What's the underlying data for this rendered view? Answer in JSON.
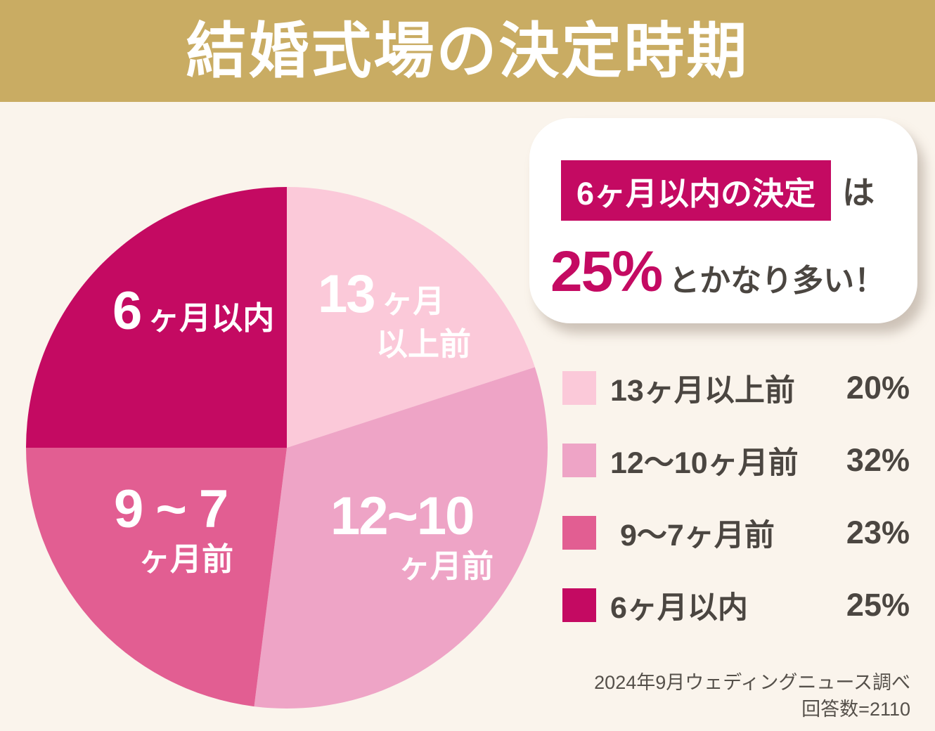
{
  "header": {
    "title": "結婚式場の決定時期",
    "background_color": "#C9AC63"
  },
  "callout": {
    "highlighted_label": "6ヶ月以内の決定",
    "particle": "は",
    "percent_value": "25%",
    "trailing_text": "とかなり多い！",
    "highlight_color": "#C40A62"
  },
  "chart_data": {
    "type": "pie",
    "title": "結婚式場の決定時期",
    "unit": "%",
    "start_angle_deg": 0,
    "direction": "clockwise",
    "legend_position": "right",
    "segments": [
      {
        "id": "13plus",
        "label": "13ヶ月以上前",
        "value": 20,
        "color": "#FBC9D9",
        "pie_label": {
          "big": "13",
          "small": "ヶ月",
          "line2": "以上前"
        }
      },
      {
        "id": "12to10",
        "label": "12〜10ヶ月前",
        "value": 32,
        "color": "#EEA4C6",
        "pie_label": {
          "big": "12~10",
          "small": "",
          "line2": "ヶ月前"
        }
      },
      {
        "id": "9to7",
        "label": "9〜7ヶ月前",
        "value": 23,
        "color": "#E25E92",
        "pie_label": {
          "big": "9 ~ 7",
          "small": "",
          "line2": "ヶ月前"
        }
      },
      {
        "id": "within6",
        "label": "6ヶ月以内",
        "value": 25,
        "color": "#C40A62",
        "pie_label": {
          "big": "6",
          "small": "ヶ月以内",
          "line2": ""
        }
      }
    ],
    "source": "2024年9月ウェディングニュース調べ",
    "sample_size": "回答数=2110"
  },
  "legend": {
    "items": [
      {
        "label": "13ヶ月以上前",
        "percent": "20%",
        "color": "#FBC9D9"
      },
      {
        "label": "12〜10ヶ月前",
        "percent": "32%",
        "color": "#EEA4C6"
      },
      {
        "label": "9〜7ヶ月前",
        "percent": "23%",
        "color": "#E25E92"
      },
      {
        "label": "6ヶ月以内",
        "percent": "25%",
        "color": "#C40A62"
      }
    ]
  },
  "footer": {
    "line1": "2024年9月ウェディングニュース調べ",
    "line2": "回答数=2110"
  }
}
